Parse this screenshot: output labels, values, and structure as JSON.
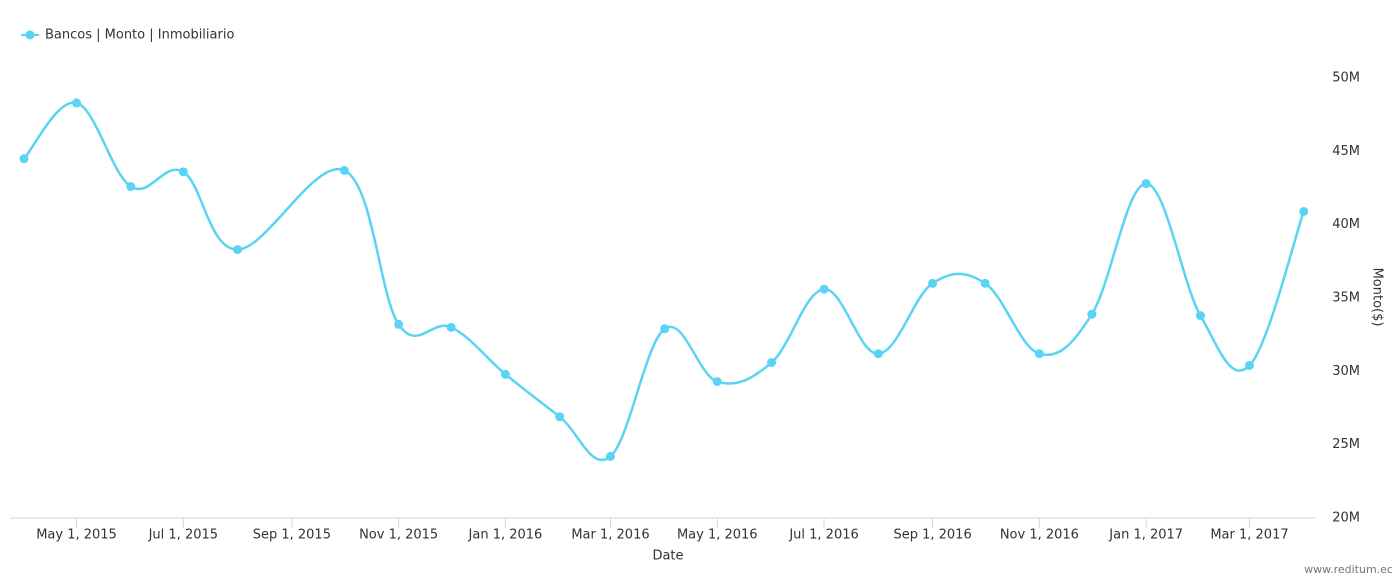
{
  "chart_data": {
    "type": "line",
    "series": [
      {
        "name": "Bancos | Monto | Inmobiliario",
        "color": "#5ad3f4",
        "x": [
          "2015-04-01",
          "2015-05-01",
          "2015-06-01",
          "2015-07-01",
          "2015-08-01",
          "2015-10-01",
          "2015-11-01",
          "2015-12-01",
          "2016-01-01",
          "2016-02-01",
          "2016-03-01",
          "2016-04-01",
          "2016-05-01",
          "2016-06-01",
          "2016-07-01",
          "2016-08-01",
          "2016-09-01",
          "2016-10-01",
          "2016-11-01",
          "2016-12-01",
          "2017-01-01",
          "2017-02-01",
          "2017-03-01",
          "2017-04-01"
        ],
        "values": [
          44500000,
          48300000,
          42600000,
          43600000,
          38300000,
          43700000,
          33200000,
          33000000,
          29800000,
          26900000,
          24200000,
          32900000,
          29300000,
          30600000,
          35600000,
          31200000,
          36000000,
          36000000,
          31200000,
          33900000,
          42800000,
          33800000,
          30400000,
          40900000
        ]
      }
    ],
    "x_label": "Date",
    "y_label": "Monto($)",
    "credit": "www.reditum.ec",
    "xlim": [
      "2015-03-24",
      "2017-04-08"
    ],
    "xticks": [
      {
        "value": "2015-05-01",
        "label": "May 1, 2015"
      },
      {
        "value": "2015-07-01",
        "label": "Jul 1, 2015"
      },
      {
        "value": "2015-09-01",
        "label": "Sep 1, 2015"
      },
      {
        "value": "2015-11-01",
        "label": "Nov 1, 2015"
      },
      {
        "value": "2016-01-01",
        "label": "Jan 1, 2016"
      },
      {
        "value": "2016-03-01",
        "label": "Mar 1, 2016"
      },
      {
        "value": "2016-05-01",
        "label": "May 1, 2016"
      },
      {
        "value": "2016-07-01",
        "label": "Jul 1, 2016"
      },
      {
        "value": "2016-09-01",
        "label": "Sep 1, 2016"
      },
      {
        "value": "2016-11-01",
        "label": "Nov 1, 2016"
      },
      {
        "value": "2017-01-01",
        "label": "Jan 1, 2017"
      },
      {
        "value": "2017-03-01",
        "label": "Mar 1, 2017"
      }
    ],
    "ylim": [
      20000000,
      50000000
    ],
    "yticks": [
      {
        "value": 20000000,
        "label": "20M"
      },
      {
        "value": 25000000,
        "label": "25M"
      },
      {
        "value": 30000000,
        "label": "30M"
      },
      {
        "value": 35000000,
        "label": "35M"
      },
      {
        "value": 40000000,
        "label": "40M"
      },
      {
        "value": 45000000,
        "label": "45M"
      },
      {
        "value": 50000000,
        "label": "50M"
      }
    ],
    "grid": false,
    "legend": "top-left"
  }
}
